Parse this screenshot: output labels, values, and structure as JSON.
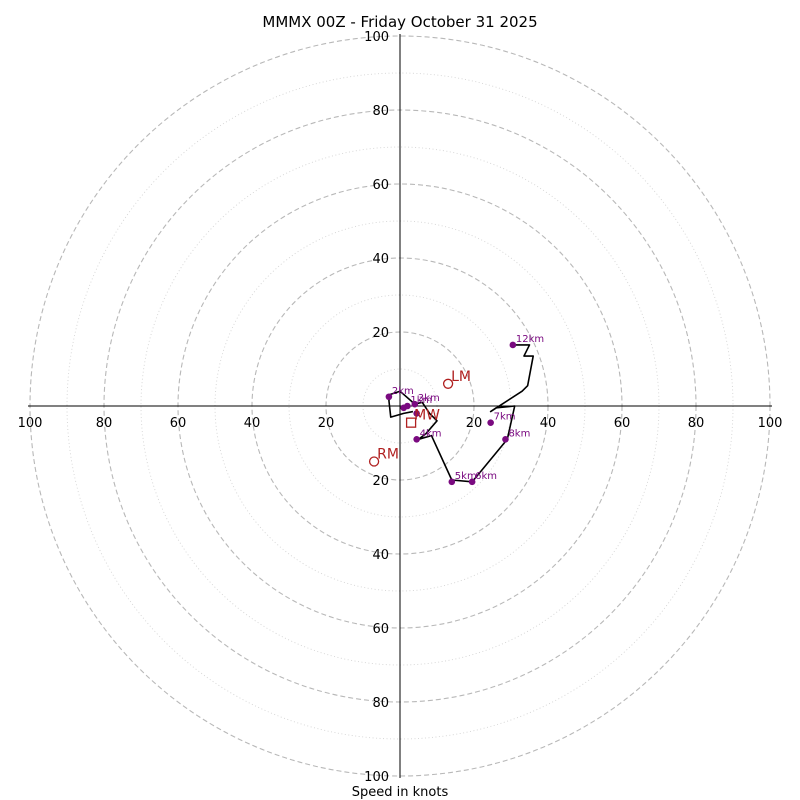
{
  "chart_data": {
    "type": "polar-hodograph",
    "title": "MMMX 00Z - Friday October 31 2025",
    "xlabel": "Speed in knots",
    "rmax": 100,
    "ring_dashed": [
      20,
      40,
      60,
      80,
      100
    ],
    "ring_dotted": [
      10,
      30,
      50,
      70,
      90
    ],
    "ticks": {
      "x_left": [
        "100",
        "80",
        "60",
        "40",
        "20"
      ],
      "x_right": [
        "20",
        "40",
        "60",
        "80",
        "100"
      ],
      "y_up": [
        "20",
        "40",
        "60",
        "80",
        "100"
      ],
      "y_down": [
        "20",
        "40",
        "60",
        "80",
        "100"
      ]
    },
    "hodograph_line": [
      [
        3.5,
        -1.5
      ],
      [
        1,
        -2
      ],
      [
        -2.5,
        -3
      ],
      [
        -3,
        1.5
      ],
      [
        -2.5,
        2.5
      ],
      [
        -3,
        3
      ],
      [
        0,
        4
      ],
      [
        4,
        0.5
      ],
      [
        6,
        1
      ],
      [
        8,
        -2
      ],
      [
        10,
        -4
      ],
      [
        7,
        -7.5
      ],
      [
        5,
        -9
      ],
      [
        8.5,
        -8
      ],
      [
        14,
        -20
      ],
      [
        19.5,
        -20.5
      ],
      [
        29,
        -9
      ],
      [
        31,
        0
      ],
      [
        26,
        -0.5
      ],
      [
        24.5,
        -1.5
      ],
      [
        33,
        4
      ],
      [
        34.5,
        5.5
      ],
      [
        36,
        13.5
      ],
      [
        33.5,
        13.5
      ],
      [
        35,
        16.5
      ],
      [
        30.5,
        16.5
      ]
    ],
    "height_points": [
      {
        "label": "",
        "u": 1,
        "v": -0.5
      },
      {
        "label": "2km",
        "u": -3,
        "v": 2.5
      },
      {
        "label": "1km",
        "u": 2,
        "v": 0
      },
      {
        "label": "3km",
        "u": 4,
        "v": 0.5
      },
      {
        "label": "",
        "u": 4.5,
        "v": -2
      },
      {
        "label": "4km",
        "u": 4.5,
        "v": -9
      },
      {
        "label": "5km",
        "u": 14,
        "v": -20.5
      },
      {
        "label": "6km",
        "u": 19.5,
        "v": -20.5
      },
      {
        "label": "7km",
        "u": 24.5,
        "v": -4.5
      },
      {
        "label": "8km",
        "u": 28.5,
        "v": -9
      },
      {
        "label": "12km",
        "u": 30.5,
        "v": 16.5
      }
    ],
    "storm_motions": [
      {
        "label": "LM",
        "u": 13,
        "v": 6
      },
      {
        "label": "RM",
        "u": -7,
        "v": -15
      },
      {
        "label": "MW",
        "u": 3,
        "v": -4.5
      }
    ],
    "colors": {
      "points": "#7a0a80",
      "motion": "#b02020",
      "line": "#000000",
      "rings": "#b8b8b8"
    }
  }
}
